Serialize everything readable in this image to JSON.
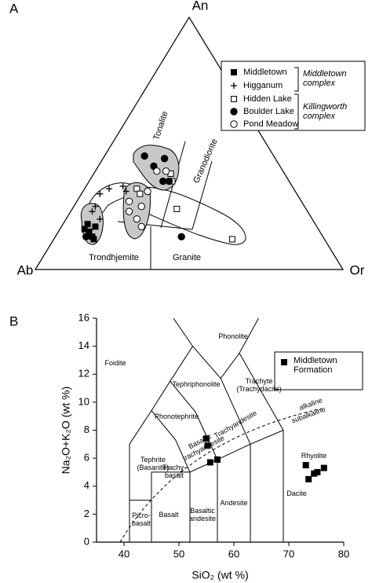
{
  "chart_data": [
    {
      "type": "ternary",
      "panel_label": "A",
      "apices": {
        "top": "An",
        "left": "Ab",
        "right": "Or"
      },
      "fields": [
        "Tonalite",
        "Granodiorite",
        "Trondhjemite",
        "Granite"
      ],
      "groups": [
        "Middletown complex",
        "Killingworth complex"
      ],
      "series": [
        {
          "name": "Middletown",
          "marker": "square",
          "filled": true,
          "color": "#000000",
          "an": [
            18,
            15,
            13,
            17,
            12,
            16
          ],
          "or": [
            8,
            10,
            12,
            11,
            13,
            8
          ]
        },
        {
          "name": "Higganum",
          "marker": "plus",
          "filled": true,
          "color": "#000000",
          "an": [
            23,
            25,
            30,
            32,
            33,
            31,
            20
          ],
          "or": [
            7,
            7,
            6,
            8,
            12,
            14,
            11
          ]
        },
        {
          "name": "Hidden Lake",
          "marker": "square",
          "filled": false,
          "color": "#000000",
          "an": [
            32,
            38,
            35,
            30,
            24,
            12
          ],
          "or": [
            17,
            25,
            27,
            19,
            34,
            58
          ]
        },
        {
          "name": "Boulder Lake",
          "marker": "circle",
          "filled": true,
          "color": "#000000",
          "an": [
            45,
            41,
            44,
            35,
            35,
            13,
            13
          ],
          "or": [
            13,
            18,
            20,
            24,
            26,
            41,
            10
          ]
        },
        {
          "name": "Pond Meadow",
          "marker": "circle",
          "filled": false,
          "color": "#000000",
          "an": [
            39,
            39,
            27,
            23,
            20,
            25,
            31,
            17
          ],
          "or": [
            20,
            23,
            17,
            19,
            23,
            22,
            21,
            26
          ]
        }
      ]
    },
    {
      "type": "scatter",
      "panel_label": "B",
      "x_label": "SiO₂ (wt %)",
      "y_label": "Na₂O+K₂O (wt %)",
      "xlim": [
        35,
        80
      ],
      "xticks": [
        40,
        50,
        60,
        70,
        80
      ],
      "ylim": [
        0,
        16
      ],
      "yticks": [
        0,
        2,
        4,
        6,
        8,
        10,
        12,
        14,
        16
      ],
      "fields": [
        "Foidite",
        "Phonolite",
        "Tephriphonolite",
        "Phonotephrite",
        "Tephrite (Basanite)",
        "Trachy-basalt",
        "Basaltic trachyandesite",
        "Trachyandesite",
        "Trachyte (Trachydacite)",
        "Rhyolite",
        "Picro-basalt",
        "Basalt",
        "Basaltic andesite",
        "Andesite",
        "Dacite",
        "alkaline",
        "subalkaline"
      ],
      "series": [
        {
          "name": "Middletown Formation",
          "marker": "square",
          "filled": true,
          "color": "#000000",
          "x": [
            55,
            55.2,
            55.7,
            57,
            73.1,
            73.6,
            74.6,
            75.2,
            76.4
          ],
          "y": [
            7.4,
            6.9,
            5.7,
            5.9,
            5.5,
            4.5,
            4.9,
            5.0,
            5.3
          ]
        }
      ]
    }
  ]
}
